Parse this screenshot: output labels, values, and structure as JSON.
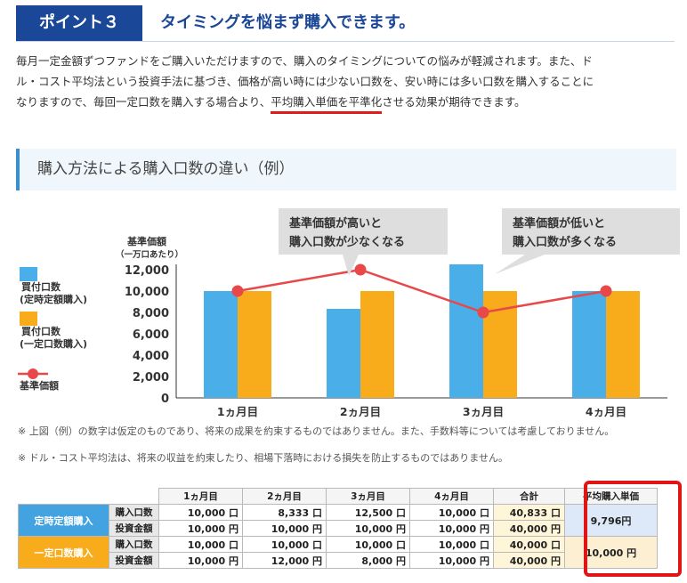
{
  "header": {
    "badge": "ポイント３",
    "title": "タイミングを悩まず購入できます。"
  },
  "intro": {
    "line1": "毎月一定金額ずつファンドをご購入いただけますので、購入のタイミングについての悩みが軽減されます。また、ド",
    "line2": "ル・コスト平均法という投資手法に基づき、価格が高い時には少ない口数を、安い時には多い口数を購入することに",
    "line3_pre": "なりますので、毎回一定口数を購入する場合より、",
    "line3_hl": "平均購入単価を平準化",
    "line3_post": "させる効果が期待できます。"
  },
  "section": {
    "title": "購入方法による購入口数の違い（例）"
  },
  "chart_data": {
    "type": "bar",
    "ylabel": "基準価額",
    "ylabel_sub": "（一万口あたり）",
    "categories": [
      "1ヵ月目",
      "2ヵ月目",
      "3ヵ月目",
      "4ヵ月目"
    ],
    "ylim": [
      0,
      12000
    ],
    "yticks": [
      "0",
      "2,000",
      "4,000",
      "6,000",
      "8,000",
      "10,000",
      "12,000"
    ],
    "series": [
      {
        "name": "買付口数\n(定時定額購入)",
        "name_line1": "買付口数",
        "name_line2": "(定時定額購入)",
        "color": "#4aaee8",
        "values": [
          10000,
          8333,
          12500,
          10000
        ]
      },
      {
        "name": "買付口数\n(一定口数購入)",
        "name_line1": "買付口数",
        "name_line2": "(一定口数購入)",
        "color": "#f8ac1b",
        "values": [
          10000,
          10000,
          10000,
          10000
        ]
      },
      {
        "name": "基準価額",
        "type": "line",
        "color": "#e8484a",
        "values": [
          10000,
          12000,
          8000,
          10000
        ]
      }
    ],
    "callouts": [
      {
        "line1": "基準価額が高いと",
        "line2": "購入口数が少なくなる"
      },
      {
        "line1": "基準価額が低いと",
        "line2": "購入口数が多くなる"
      }
    ],
    "grid": false,
    "legend": "left"
  },
  "notes": {
    "n1": "※ 上図（例）の数字は仮定のものであり、将来の成果を約束するものではありません。また、手数料等については考慮しておりません。",
    "n2": "※ ドル・コスト平均法は、将来の収益を約束したり、相場下落時における損失を防止するものではありません。"
  },
  "table": {
    "headers": [
      "1ヵ月目",
      "2ヵ月目",
      "3ヵ月目",
      "4ヵ月目",
      "合計",
      "平均購入単価"
    ],
    "group_a": "定時定額購入",
    "group_b": "一定口数購入",
    "label_units": "購入口数",
    "label_amount": "投資金額",
    "a_units": [
      "10,000 口",
      "8,333 口",
      "12,500 口",
      "10,000 口",
      "40,833 口"
    ],
    "a_amount": [
      "10,000 円",
      "10,000 円",
      "10,000 円",
      "10,000 円",
      "40,000 円"
    ],
    "a_avg": "9,796円",
    "b_units": [
      "10,000 口",
      "10,000 口",
      "10,000 口",
      "10,000 口",
      "40,000 口"
    ],
    "b_amount": [
      "10,000 円",
      "12,000 円",
      "8,000 円",
      "10,000 円",
      "40,000 円"
    ],
    "b_avg": "10,000 円"
  }
}
